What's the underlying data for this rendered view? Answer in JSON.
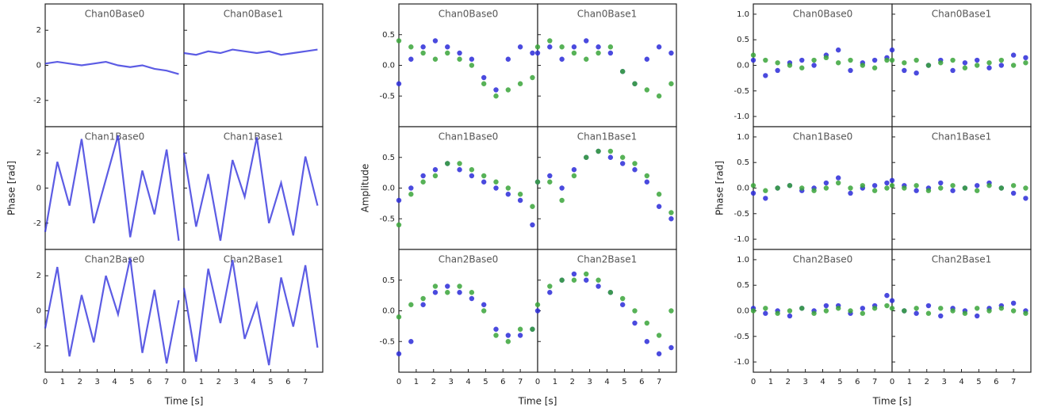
{
  "chart_data": [
    {
      "type": "line",
      "xlabel": "Time [s]",
      "ylabel": "Phase [rad]",
      "x": [
        0,
        0.7,
        1.4,
        2.1,
        2.8,
        3.5,
        4.2,
        4.9,
        5.6,
        6.3,
        7.0,
        7.7
      ],
      "xlim": [
        0,
        8
      ],
      "xticks": [
        0,
        1,
        2,
        3,
        4,
        5,
        6,
        7
      ],
      "ylim": [
        -3.5,
        3.5
      ],
      "yticks": [
        -2,
        0,
        2
      ],
      "series_colors": [
        "#3333dd"
      ],
      "panels": [
        {
          "title": "Chan0Base0",
          "series": [
            [
              0.1,
              0.2,
              0.1,
              0,
              0.1,
              0.2,
              0,
              -0.1,
              0,
              -0.2,
              -0.3,
              -0.5
            ]
          ]
        },
        {
          "title": "Chan0Base1",
          "series": [
            [
              0.7,
              0.6,
              0.8,
              0.7,
              0.9,
              0.8,
              0.7,
              0.8,
              0.6,
              0.7,
              0.8,
              0.9
            ]
          ]
        },
        {
          "title": "Chan1Base0",
          "series": [
            [
              -2.5,
              1.5,
              -1,
              2.8,
              -2,
              0.5,
              3,
              -2.8,
              1,
              -1.5,
              2.2,
              -3
            ]
          ]
        },
        {
          "title": "Chan1Base1",
          "series": [
            [
              2,
              -2.2,
              0.8,
              -3,
              1.6,
              -0.5,
              2.9,
              -2,
              0.3,
              -2.7,
              1.8,
              -1
            ]
          ]
        },
        {
          "title": "Chan2Base0",
          "series": [
            [
              -1,
              2.5,
              -2.6,
              0.9,
              -1.8,
              2,
              -0.2,
              3,
              -2.4,
              1.2,
              -3,
              0.6
            ]
          ]
        },
        {
          "title": "Chan2Base1",
          "series": [
            [
              1.3,
              -2.9,
              2.4,
              -0.7,
              2.9,
              -1.6,
              0.4,
              -3.1,
              1.9,
              -0.9,
              2.6,
              -2.1
            ]
          ]
        }
      ]
    },
    {
      "type": "scatter",
      "xlabel": "Time [s]",
      "ylabel": "Amplitude",
      "x": [
        0,
        0.7,
        1.4,
        2.1,
        2.8,
        3.5,
        4.2,
        4.9,
        5.6,
        6.3,
        7.0,
        7.7
      ],
      "xlim": [
        0,
        8
      ],
      "xticks": [
        0,
        1,
        2,
        3,
        4,
        5,
        6,
        7
      ],
      "ylim": [
        -1,
        1
      ],
      "yticks": [
        -0.5,
        {
          "value": 0,
          "label": "0.0"
        },
        0.5
      ],
      "series_colors": [
        "#2a2ad8",
        "#3aa53a"
      ],
      "panels": [
        {
          "title": "Chan0Base0",
          "series": [
            [
              -0.3,
              0.1,
              0.3,
              0.4,
              0.3,
              0.2,
              0.1,
              -0.2,
              -0.4,
              0.1,
              0.3,
              0.2
            ],
            [
              0.4,
              0.3,
              0.2,
              0.1,
              0.2,
              0.1,
              0,
              -0.3,
              -0.5,
              -0.4,
              -0.3,
              -0.2
            ]
          ]
        },
        {
          "title": "Chan0Base1",
          "series": [
            [
              0.2,
              0.3,
              0.1,
              0.3,
              0.4,
              0.3,
              0.2,
              -0.1,
              -0.3,
              0.1,
              0.3,
              0.2
            ],
            [
              0.3,
              0.4,
              0.3,
              0.2,
              0.1,
              0.2,
              0.3,
              -0.1,
              -0.3,
              -0.4,
              -0.5,
              -0.3
            ]
          ]
        },
        {
          "title": "Chan1Base0",
          "series": [
            [
              -0.2,
              0,
              0.2,
              0.3,
              0.4,
              0.3,
              0.2,
              0.1,
              0,
              -0.1,
              -0.2,
              -0.6
            ],
            [
              -0.6,
              -0.1,
              0.1,
              0.2,
              0.4,
              0.4,
              0.3,
              0.2,
              0.1,
              0,
              -0.1,
              -0.3
            ]
          ]
        },
        {
          "title": "Chan1Base1",
          "series": [
            [
              0.1,
              0.2,
              0,
              0.3,
              0.5,
              0.6,
              0.5,
              0.4,
              0.3,
              0.1,
              -0.3,
              -0.5
            ],
            [
              0.1,
              0.1,
              -0.2,
              0.2,
              0.5,
              0.6,
              0.6,
              0.5,
              0.4,
              0.2,
              -0.1,
              -0.4
            ]
          ]
        },
        {
          "title": "Chan2Base0",
          "series": [
            [
              -0.7,
              -0.5,
              0.1,
              0.3,
              0.4,
              0.3,
              0.2,
              0.1,
              -0.3,
              -0.4,
              -0.4,
              -0.3
            ],
            [
              -0.1,
              0.1,
              0.2,
              0.4,
              0.3,
              0.4,
              0.3,
              0,
              -0.4,
              -0.5,
              -0.3,
              -0.3
            ]
          ]
        },
        {
          "title": "Chan2Base1",
          "series": [
            [
              0,
              0.3,
              0.5,
              0.6,
              0.5,
              0.4,
              0.3,
              0.1,
              -0.2,
              -0.5,
              -0.7,
              -0.6
            ],
            [
              0.1,
              0.4,
              0.5,
              0.5,
              0.6,
              0.5,
              0.3,
              0.2,
              0,
              -0.2,
              -0.4,
              0
            ]
          ]
        }
      ]
    },
    {
      "type": "scatter",
      "xlabel": "Time [s]",
      "ylabel": "Phase [rad]",
      "x": [
        0,
        0.7,
        1.4,
        2.1,
        2.8,
        3.5,
        4.2,
        4.9,
        5.6,
        6.3,
        7.0,
        7.7
      ],
      "xlim": [
        0,
        8
      ],
      "xticks": [
        0,
        1,
        2,
        3,
        4,
        5,
        6,
        7
      ],
      "ylim": [
        -1.2,
        1.2
      ],
      "yticks": [
        {
          "value": -1,
          "label": "-1.0"
        },
        -0.5,
        {
          "value": 0,
          "label": "0.0"
        },
        0.5,
        {
          "value": 1,
          "label": "1.0"
        }
      ],
      "series_colors": [
        "#2a2ad8",
        "#3aa53a"
      ],
      "panels": [
        {
          "title": "Chan0Base0",
          "series": [
            [
              0.1,
              -0.2,
              -0.1,
              0.05,
              0.1,
              0,
              0.2,
              0.3,
              -0.1,
              0.05,
              0.1,
              0.15
            ],
            [
              0.2,
              0.1,
              0.05,
              0,
              -0.05,
              0.1,
              0.15,
              0.05,
              0.1,
              0,
              -0.05,
              0.1
            ]
          ]
        },
        {
          "title": "Chan0Base1",
          "series": [
            [
              0.3,
              -0.1,
              -0.15,
              0,
              0.1,
              -0.1,
              0.05,
              0.1,
              -0.05,
              0,
              0.2,
              0.15
            ],
            [
              0.1,
              0.05,
              0.1,
              0,
              0.05,
              0.1,
              -0.05,
              0,
              0.05,
              0.1,
              0,
              0.05
            ]
          ]
        },
        {
          "title": "Chan1Base0",
          "series": [
            [
              -0.1,
              -0.2,
              0,
              0.05,
              -0.05,
              0,
              0.1,
              0.2,
              -0.1,
              0,
              0.05,
              0.1
            ],
            [
              0.05,
              -0.05,
              0,
              0.05,
              0,
              -0.05,
              0,
              0.1,
              0,
              0.05,
              -0.05,
              0
            ]
          ]
        },
        {
          "title": "Chan1Base1",
          "series": [
            [
              0.15,
              0.05,
              -0.05,
              0,
              0.1,
              -0.05,
              0,
              0.05,
              0.1,
              0,
              -0.1,
              -0.2
            ],
            [
              0.05,
              0,
              0.05,
              -0.05,
              0,
              0.05,
              0,
              -0.05,
              0.05,
              0,
              0.05,
              0
            ]
          ]
        },
        {
          "title": "Chan2Base0",
          "series": [
            [
              0.05,
              -0.05,
              0,
              -0.1,
              0.05,
              0,
              0.1,
              0.1,
              -0.05,
              0.05,
              0.1,
              0.3
            ],
            [
              0,
              0.05,
              -0.05,
              0,
              0.05,
              -0.05,
              0,
              0.05,
              0,
              -0.05,
              0.05,
              0.1
            ]
          ]
        },
        {
          "title": "Chan2Base1",
          "series": [
            [
              0.2,
              0,
              -0.05,
              0.1,
              -0.1,
              0.05,
              0,
              -0.1,
              0.05,
              0.1,
              0.15,
              0
            ],
            [
              0.05,
              0,
              0.05,
              -0.05,
              0.05,
              0,
              -0.05,
              0.05,
              0,
              0.05,
              0,
              -0.05
            ]
          ]
        }
      ]
    }
  ]
}
